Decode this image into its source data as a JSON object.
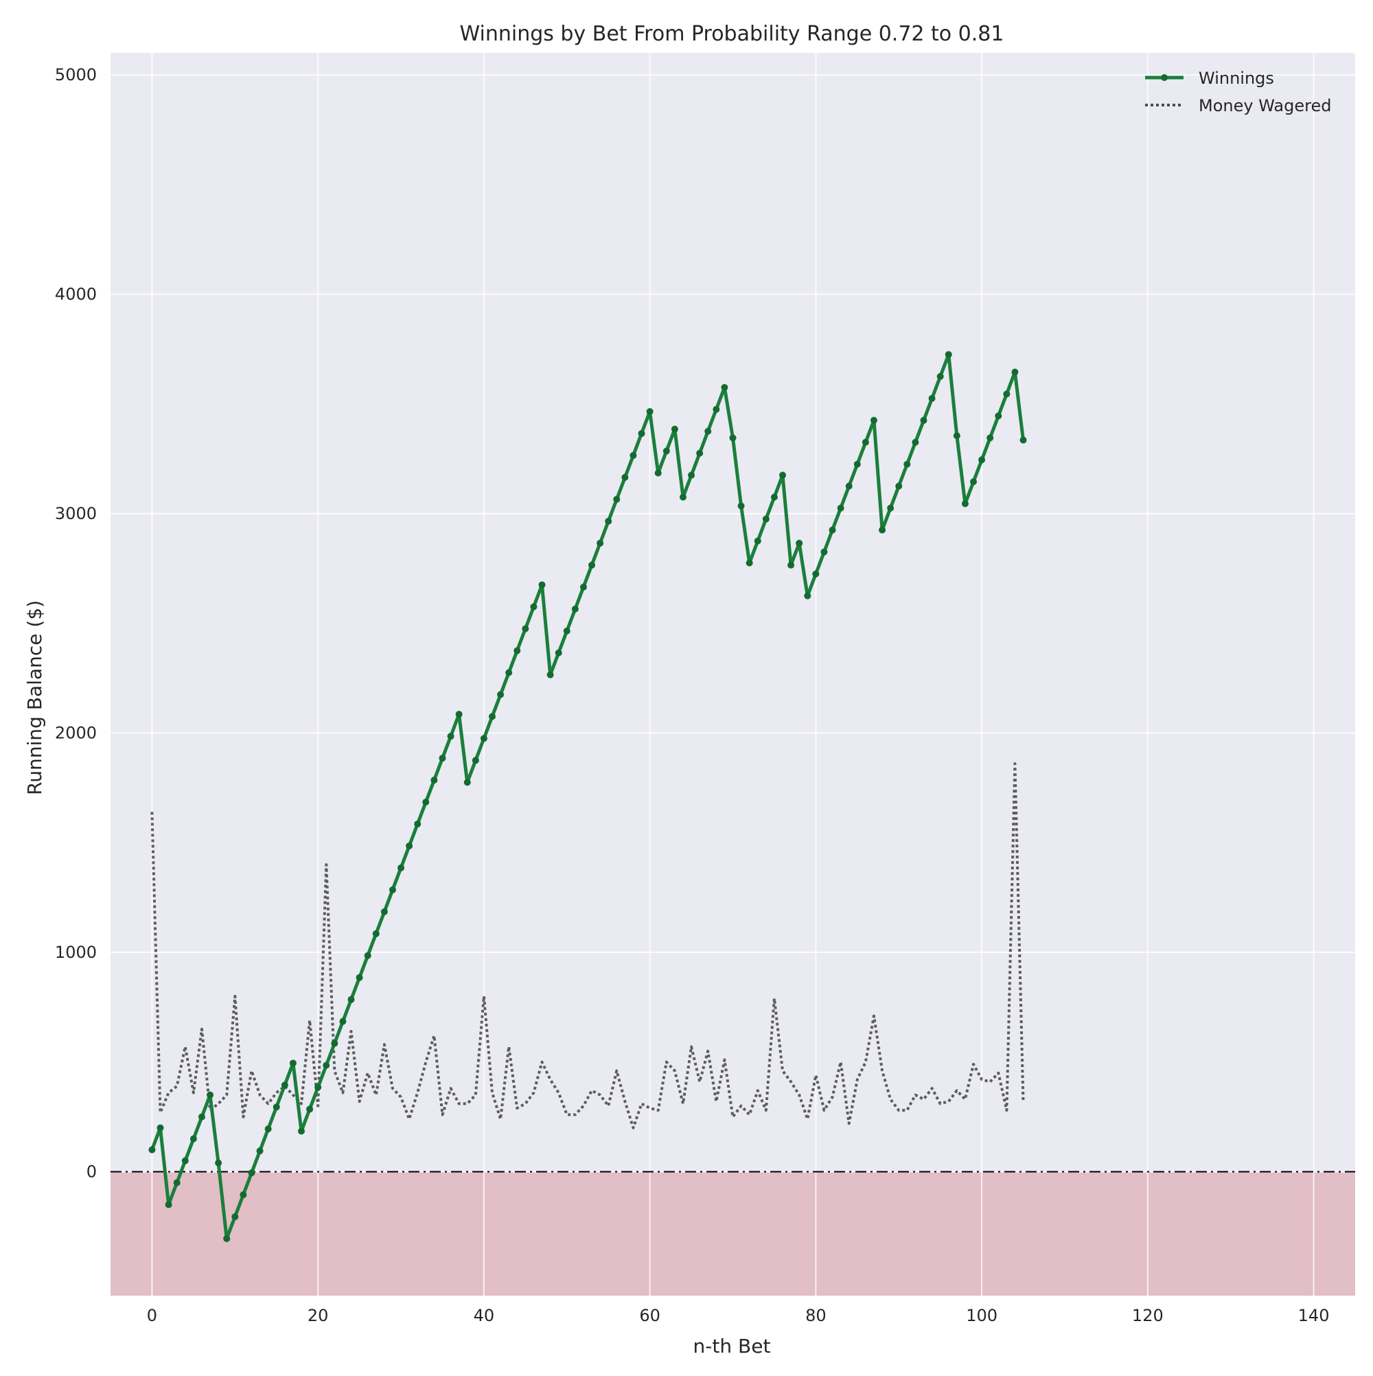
{
  "chart_data": {
    "type": "line",
    "title": "Winnings by Bet From Probability Range 0.72 to 0.81",
    "xlabel": "n-th Bet",
    "ylabel": "Running Balance ($)",
    "xlim": [
      -5,
      145
    ],
    "ylim": [
      -565,
      5100
    ],
    "xticks": [
      0,
      20,
      40,
      60,
      80,
      100,
      120,
      140
    ],
    "yticks": [
      0,
      1000,
      2000,
      3000,
      4000,
      5000
    ],
    "grid": true,
    "legend_position": "upper right",
    "baseline": 0,
    "negative_region_color": "#e2bec6",
    "background_color": "#eaeaf2",
    "series": [
      {
        "name": "Winnings",
        "color": "#1a7f3c",
        "style": "solid",
        "marker": "dot",
        "x": [
          0,
          1,
          2,
          3,
          4,
          5,
          6,
          7,
          8,
          9,
          10,
          11,
          12,
          13,
          14,
          15,
          16,
          17,
          18,
          19,
          20,
          21,
          22,
          23,
          24,
          25,
          26,
          27,
          28,
          29,
          30,
          31,
          32,
          33,
          34,
          35,
          36,
          37,
          38,
          39,
          40,
          41,
          42,
          43,
          44,
          45,
          46,
          47,
          48,
          49,
          50,
          51,
          52,
          53,
          54,
          55,
          56,
          57,
          58,
          59,
          60,
          61,
          62,
          63,
          64,
          65,
          66,
          67,
          68,
          69,
          70,
          71,
          72,
          73,
          74,
          75,
          76,
          77,
          78,
          79,
          80,
          81,
          82,
          83,
          84,
          85,
          86,
          87,
          88,
          89,
          90,
          91,
          92,
          93,
          94,
          95,
          96,
          97,
          98,
          99,
          100,
          101,
          102,
          103,
          104,
          105
        ],
        "values": [
          100,
          200,
          -150,
          -50,
          50,
          150,
          250,
          350,
          40,
          -305,
          -205,
          -105,
          -5,
          95,
          195,
          295,
          395,
          495,
          185,
          285,
          385,
          485,
          585,
          685,
          785,
          885,
          985,
          1085,
          1185,
          1285,
          1385,
          1485,
          1585,
          1685,
          1785,
          1885,
          1985,
          2085,
          1775,
          1875,
          1975,
          2075,
          2175,
          2275,
          2375,
          2475,
          2575,
          2675,
          2265,
          2365,
          2465,
          2565,
          2665,
          2765,
          2865,
          2965,
          3065,
          3165,
          3265,
          3365,
          3465,
          3185,
          3285,
          3385,
          3075,
          3175,
          3275,
          3375,
          3475,
          3575,
          3345,
          3035,
          2775,
          2875,
          2975,
          3075,
          3175,
          2765,
          2865,
          2625,
          2725,
          2825,
          2925,
          3025,
          3125,
          3225,
          3325,
          3425,
          2925,
          3025,
          3125,
          3225,
          3325,
          3425,
          3525,
          3625,
          3725,
          3355,
          3045,
          3145,
          3245,
          3345,
          3445,
          3545,
          3645,
          3335
        ]
      },
      {
        "name": "Money Wagered",
        "color": "#4d4d4d",
        "style": "dotted",
        "marker": "none",
        "x": [
          0,
          1,
          2,
          3,
          4,
          5,
          6,
          7,
          8,
          9,
          10,
          11,
          12,
          13,
          14,
          15,
          16,
          17,
          18,
          19,
          20,
          21,
          22,
          23,
          24,
          25,
          26,
          27,
          28,
          29,
          30,
          31,
          32,
          33,
          34,
          35,
          36,
          37,
          38,
          39,
          40,
          41,
          42,
          43,
          44,
          45,
          46,
          47,
          48,
          49,
          50,
          51,
          52,
          53,
          54,
          55,
          56,
          57,
          58,
          59,
          60,
          61,
          62,
          63,
          64,
          65,
          66,
          67,
          68,
          69,
          70,
          71,
          72,
          73,
          74,
          75,
          76,
          77,
          78,
          79,
          80,
          81,
          82,
          83,
          84,
          85,
          86,
          87,
          88,
          89,
          90,
          91,
          92,
          93,
          94,
          95,
          96,
          97,
          98,
          99,
          100,
          101,
          102,
          103,
          104,
          105
        ],
        "values": [
          1640,
          270,
          360,
          390,
          570,
          360,
          650,
          280,
          310,
          350,
          800,
          250,
          460,
          350,
          310,
          360,
          390,
          350,
          310,
          690,
          300,
          1400,
          460,
          360,
          640,
          320,
          450,
          350,
          580,
          380,
          340,
          240,
          360,
          500,
          620,
          260,
          380,
          310,
          310,
          350,
          800,
          360,
          240,
          570,
          290,
          310,
          360,
          500,
          420,
          360,
          260,
          260,
          300,
          370,
          350,
          300,
          460,
          320,
          200,
          310,
          290,
          280,
          500,
          460,
          310,
          570,
          410,
          550,
          320,
          510,
          250,
          300,
          260,
          370,
          280,
          790,
          460,
          410,
          350,
          240,
          440,
          280,
          340,
          500,
          220,
          420,
          500,
          710,
          460,
          330,
          280,
          280,
          350,
          330,
          380,
          310,
          320,
          370,
          330,
          490,
          420,
          410,
          450,
          280,
          1860,
          320
        ]
      }
    ]
  }
}
